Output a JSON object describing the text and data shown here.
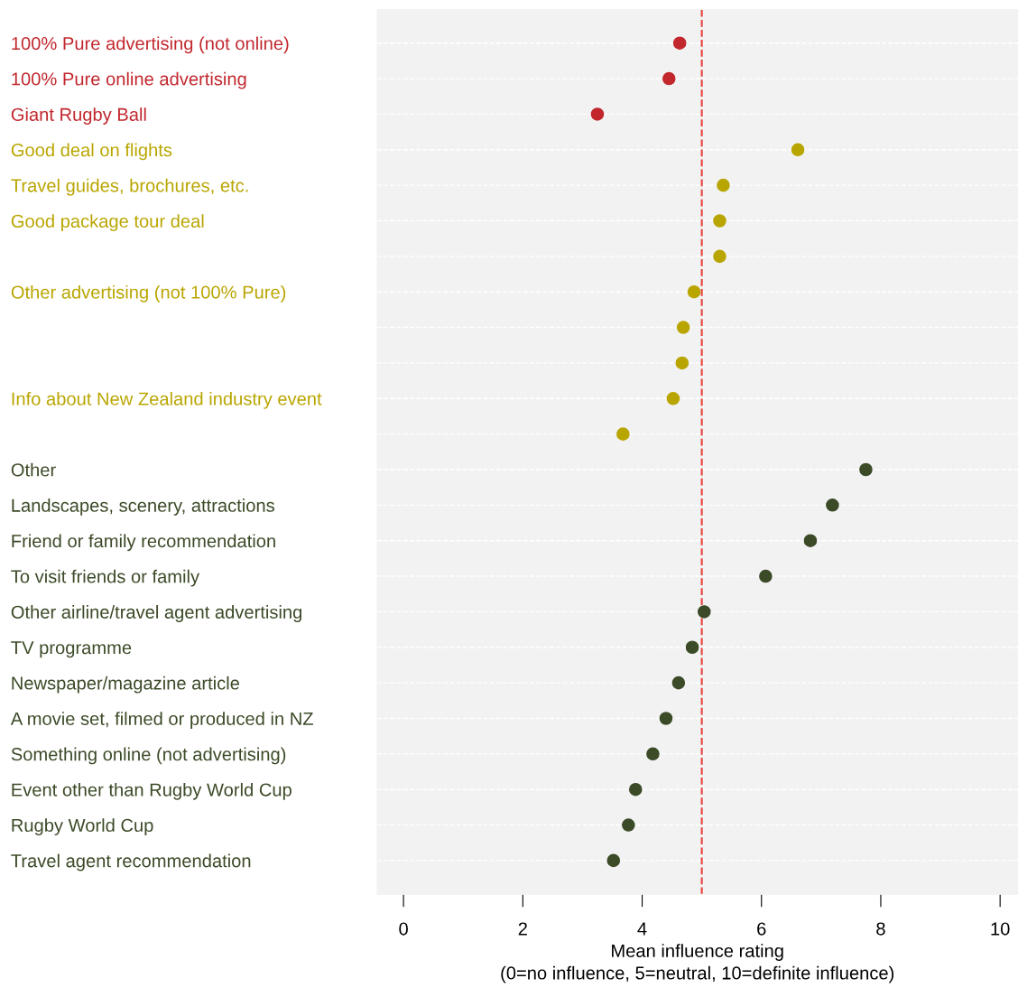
{
  "chart_data": {
    "type": "scatter",
    "orientation": "horizontal",
    "categories": [
      "100% Pure advertising (not online)",
      "100% Pure online advertising",
      "Giant Rugby Ball",
      "Good deal on flights",
      "Travel guides, brochures, etc.",
      "Good package tour deal",
      null,
      "Other advertising (not 100% Pure)",
      null,
      null,
      "Info about New Zealand industry event",
      null,
      "Other",
      "Landscapes, scenery, attractions",
      "Friend or family recommendation",
      "To visit friends or family",
      "Other airline/travel agent advertising",
      "TV programme",
      "Newspaper/magazine article",
      "A movie set, filmed or produced in NZ",
      "Something online (not advertising)",
      "Event other than Rugby World Cup",
      "Rugby World Cup",
      "Travel agent recommendation"
    ],
    "values": [
      4.63,
      4.45,
      3.25,
      6.61,
      5.36,
      5.3,
      5.3,
      4.87,
      4.69,
      4.67,
      4.52,
      3.68,
      7.75,
      7.19,
      6.82,
      6.07,
      5.04,
      4.84,
      4.61,
      4.4,
      4.18,
      3.89,
      3.77,
      3.52
    ],
    "colors": [
      "#c1272d",
      "#c1272d",
      "#c1272d",
      "#b9a500",
      "#b9a500",
      "#b9a500",
      "#b9a500",
      "#b9a500",
      "#b9a500",
      "#b9a500",
      "#b9a500",
      "#b9a500",
      "#3b4a27",
      "#3b4a27",
      "#3b4a27",
      "#3b4a27",
      "#3b4a27",
      "#3b4a27",
      "#3b4a27",
      "#3b4a27",
      "#3b4a27",
      "#3b4a27",
      "#3b4a27",
      "#3b4a27"
    ],
    "xlim": [
      -0.45,
      10.3
    ],
    "xticks": [
      0,
      2,
      4,
      6,
      8,
      10
    ],
    "xlabel": "Mean influence rating\n(0=no influence, 5=neutral, 10=definite influence)",
    "ref_lines": [
      {
        "axis": "x",
        "value": 5,
        "color": "#e8413c",
        "line_style": "dashed"
      }
    ],
    "grid": "y",
    "marker": "circle",
    "legend": false
  }
}
